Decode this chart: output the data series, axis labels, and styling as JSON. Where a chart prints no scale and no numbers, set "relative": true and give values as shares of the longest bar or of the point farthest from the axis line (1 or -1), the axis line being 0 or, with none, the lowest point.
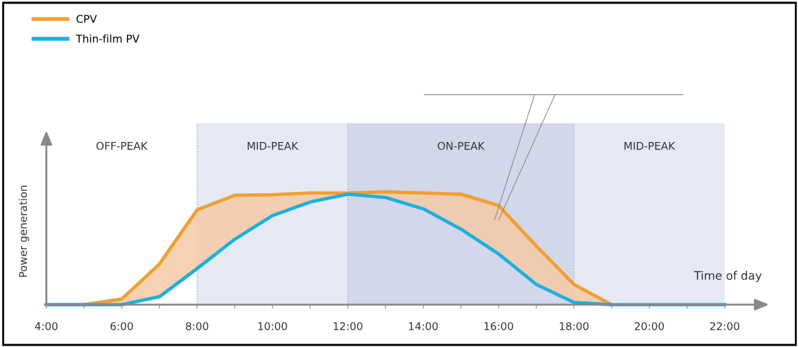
{
  "chart_data": {
    "type": "line",
    "relative": true,
    "xlabel": "Time of day",
    "ylabel": "Power generation",
    "x": [
      4,
      5,
      6,
      7,
      8,
      9,
      10,
      11,
      12,
      13,
      14,
      15,
      16,
      17,
      18,
      19,
      20,
      21,
      22
    ],
    "xlim": [
      4,
      22
    ],
    "xticks": [
      {
        "value": 4,
        "label": "4:00"
      },
      {
        "value": 5,
        "label": null
      },
      {
        "value": 6,
        "label": "6:00"
      },
      {
        "value": 7,
        "label": null
      },
      {
        "value": 8,
        "label": "8:00"
      },
      {
        "value": 9,
        "label": null
      },
      {
        "value": 10,
        "label": "10:00"
      },
      {
        "value": 11,
        "label": null
      },
      {
        "value": 12,
        "label": "12:00"
      },
      {
        "value": 13,
        "label": null
      },
      {
        "value": 14,
        "label": "14:00"
      },
      {
        "value": 15,
        "label": null
      },
      {
        "value": 16,
        "label": "16:00"
      },
      {
        "value": 17,
        "label": null
      },
      {
        "value": 18,
        "label": "18:00"
      },
      {
        "value": 19,
        "label": null
      },
      {
        "value": 20,
        "label": "20:00"
      },
      {
        "value": 21,
        "label": null
      },
      {
        "value": 22,
        "label": "22:00"
      }
    ],
    "series": [
      {
        "name": "CPV",
        "color": "#f0a030",
        "values": [
          0,
          0,
          0.05,
          0.36,
          0.84,
          0.97,
          0.975,
          0.99,
          0.99,
          1.0,
          0.99,
          0.98,
          0.88,
          0.52,
          0.18,
          0,
          null,
          null,
          null
        ],
        "lower": [
          0,
          0,
          0,
          0.07,
          0.32,
          0.58,
          0.79,
          0.91,
          0.98,
          0.95,
          0.85,
          0.67,
          0.45,
          0.18,
          0.02,
          0,
          null,
          null,
          null
        ],
        "upper": [
          0,
          0,
          0.05,
          0.36,
          0.84,
          0.97,
          0.975,
          0.99,
          0.99,
          1.0,
          0.99,
          0.98,
          0.88,
          0.52,
          0.18,
          0,
          null,
          null,
          null
        ]
      },
      {
        "name": "Thin-film PV",
        "color": "#1ab0e0",
        "values": [
          0,
          0,
          0,
          0.07,
          0.32,
          0.58,
          0.79,
          0.91,
          0.98,
          0.95,
          0.85,
          0.67,
          0.45,
          0.18,
          0.02,
          0,
          0,
          0,
          0
        ]
      }
    ],
    "bands": [
      {
        "axis": "x",
        "from": 8,
        "to": 12,
        "label": "MID-PEAK",
        "color": "#e6e9f4"
      },
      {
        "axis": "x",
        "from": 12,
        "to": 18,
        "label": "ON-PEAK",
        "color": "#d2d8ea"
      },
      {
        "axis": "x",
        "from": 18,
        "to": 22,
        "label": "MID-PEAK",
        "color": "#e6e9f4"
      }
    ],
    "ref_lines": [
      {
        "axis": "x",
        "value": 8,
        "color": "#9aa3c0",
        "line_style": "dotted"
      },
      {
        "axis": "x",
        "value": 12,
        "color": "#9aa3c0",
        "line_style": "dotted"
      },
      {
        "axis": "x",
        "value": 18,
        "color": "#9aa3c0",
        "line_style": "dotted"
      }
    ],
    "annotations": [
      "OFF-PEAK"
    ],
    "legend": "top left",
    "marker": "none",
    "line_style": "solid"
  }
}
